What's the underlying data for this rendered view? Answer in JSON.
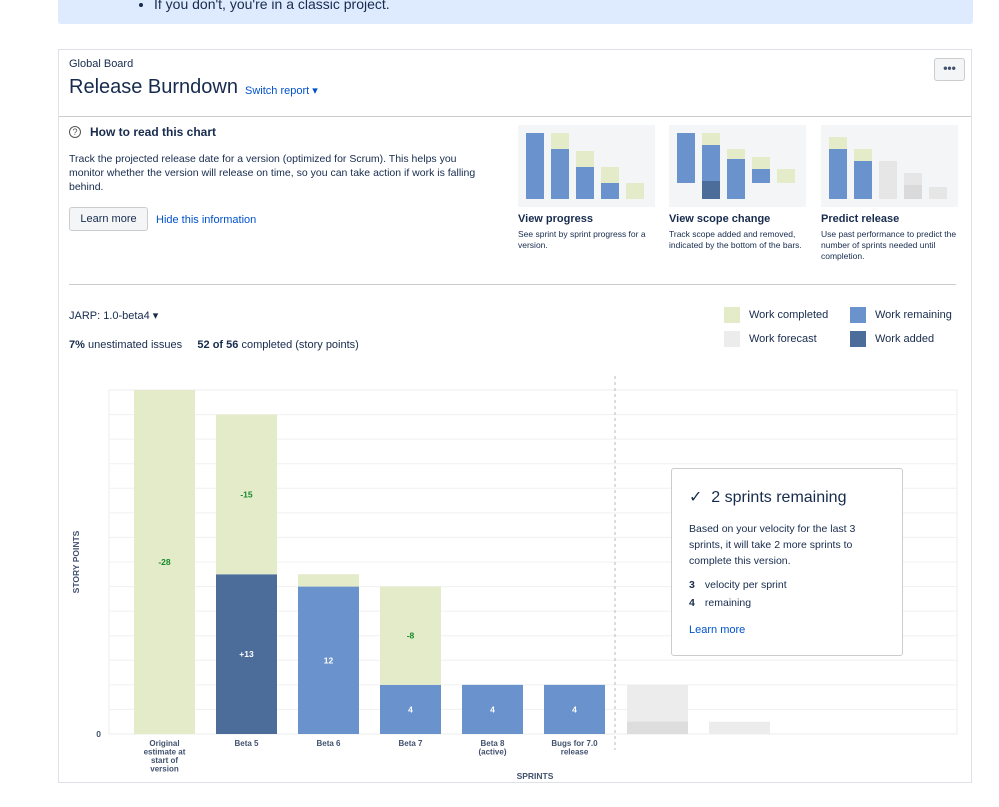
{
  "note": {
    "text": "If you don't, you're in a classic project."
  },
  "header": {
    "board": "Global Board",
    "title": "Release Burndown",
    "switch_report": "Switch report ▾",
    "more": "•••"
  },
  "howto": {
    "title": "How to read this chart",
    "description": "Track the projected release date for a version (optimized for Scrum). This helps you monitor whether the version will release on time, so you can take action if work is falling behind.",
    "learn_more": "Learn more",
    "hide": "Hide this information",
    "thumbs": [
      {
        "title": "View progress",
        "desc": "See sprint by sprint progress for a version."
      },
      {
        "title": "View scope change",
        "desc": "Track scope added and removed, indicated by the bottom of the bars."
      },
      {
        "title": "Predict release",
        "desc": "Use past performance to predict the number of sprints needed until completion."
      }
    ]
  },
  "filter": {
    "version": "JARP: 1.0-beta4 ▾",
    "unestimated_pct": "7%",
    "unestimated_label": "unestimated issues",
    "completed_count": "52 of 56",
    "completed_label": "completed (story points)"
  },
  "legend": {
    "completed": "Work completed",
    "remaining": "Work remaining",
    "forecast": "Work forecast",
    "added": "Work added"
  },
  "colors": {
    "completed": "#e3ebc9",
    "remaining": "#6a92cc",
    "added": "#4c6c9a",
    "forecast": "#ececec",
    "link": "#0052cc",
    "label_green": "#14892c"
  },
  "forecast_box": {
    "title": "2 sprints remaining",
    "desc": "Based on your velocity for the last 3 sprints, it will take 2 more sprints to complete this version.",
    "velocity_value": "3",
    "velocity_label": "velocity per sprint",
    "remaining_value": "4",
    "remaining_label": "remaining",
    "learn_more": "Learn more"
  },
  "chart_data": {
    "type": "bar",
    "ylabel": "STORY POINTS",
    "xlabel": "SPRINTS",
    "y_tick": "0",
    "ylim": [
      0,
      56
    ],
    "categories": [
      "Original estimate at start of version",
      "Beta 5",
      "Beta 6",
      "Beta 7",
      "Beta 8 (active)",
      "Bugs for 7.0 release"
    ],
    "category_lines": [
      [
        "Original",
        "estimate at",
        "start of",
        "version"
      ],
      [
        "Beta 5"
      ],
      [
        "Beta 6"
      ],
      [
        "Beta 7"
      ],
      [
        "Beta 8",
        "(active)"
      ],
      [
        "Bugs for 7.0",
        "release"
      ]
    ],
    "bars": [
      {
        "completed": 56,
        "remaining": 0,
        "added": 0,
        "completed_label": "-28",
        "remaining_label": ""
      },
      {
        "completed": 26,
        "remaining": 0,
        "added": 26,
        "completed_label": "-15",
        "remaining_label": "+13"
      },
      {
        "completed": 2,
        "remaining": 24,
        "added": 0,
        "completed_label": "",
        "remaining_label": "12"
      },
      {
        "completed": 16,
        "remaining": 8,
        "added": 0,
        "completed_label": "-8",
        "remaining_label": "4"
      },
      {
        "completed": 0,
        "remaining": 8,
        "added": 0,
        "completed_label": "",
        "remaining_label": "4"
      },
      {
        "completed": 0,
        "remaining": 8,
        "added": 0,
        "completed_label": "",
        "remaining_label": "4"
      }
    ],
    "forecast_bars": [
      {
        "total": 8,
        "base": 2
      },
      {
        "total": 2,
        "base": 0
      }
    ]
  }
}
